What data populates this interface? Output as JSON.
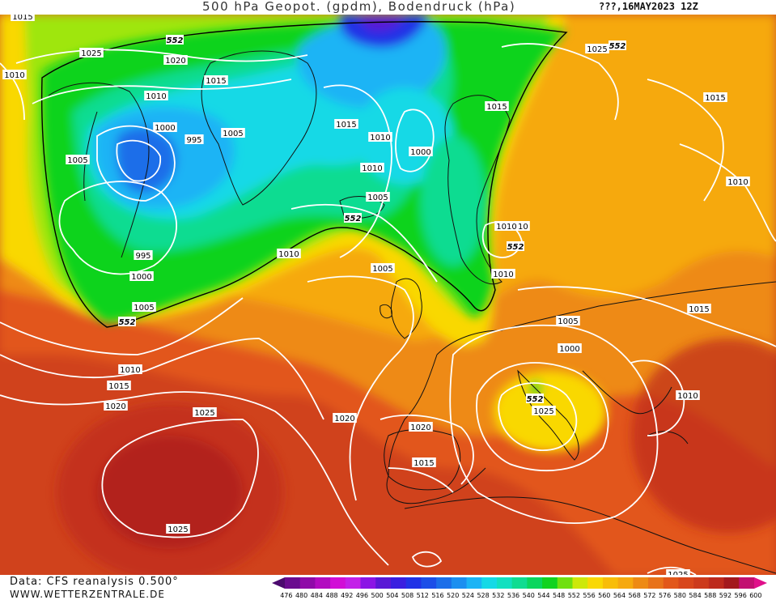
{
  "header": {
    "title": "500 hPa Geopot. (gpdm), Bodendruck (hPa)",
    "timestamp": "???,16MAY2023 12Z"
  },
  "footer": {
    "data_source": "Data: CFS reanalysis 0.500°",
    "website": "WWW.WETTERZENTRALE.DE"
  },
  "colors": {
    "sea_deep": "#a3191d",
    "red": "#cc3a1c",
    "orange_red": "#e2571a",
    "orange": "#ee8a14",
    "amber": "#f6a90f",
    "yellow": "#f9d804",
    "lime": "#cde80a",
    "green": "#11d31f",
    "teal": "#0fdc91",
    "cyan": "#15d9e6",
    "sky": "#1bb4f5",
    "blue": "#1b6ee9",
    "indigo": "#5a18d6",
    "purple": "#7f10c9",
    "isobar": "#ffffff",
    "coast": "#111111"
  },
  "geopotential_scale": {
    "labels": [
      "476",
      "480",
      "484",
      "488",
      "492",
      "496",
      "500",
      "504",
      "508",
      "512",
      "516",
      "520",
      "524",
      "528",
      "532",
      "536",
      "540",
      "544",
      "548",
      "552",
      "556",
      "560",
      "564",
      "568",
      "572",
      "576",
      "580",
      "584",
      "588",
      "592",
      "596",
      "600"
    ],
    "colors": [
      "#4b0a6e",
      "#6a0b8f",
      "#8f0aa8",
      "#b20bc0",
      "#d10ed6",
      "#c320e8",
      "#8b15e5",
      "#5a18d6",
      "#3a1ee0",
      "#2132e6",
      "#1b4ee8",
      "#1b6ee9",
      "#1b8ff0",
      "#1bb4f5",
      "#15d9e6",
      "#12e0c0",
      "#0fdc91",
      "#0ad65e",
      "#11d31f",
      "#70e010",
      "#cde80a",
      "#f9d804",
      "#f8bd08",
      "#f6a90f",
      "#ee8a14",
      "#e8721a",
      "#e2571a",
      "#d8461b",
      "#cc3a1c",
      "#bd2a1d",
      "#a3191d",
      "#c21070",
      "#e0108a"
    ]
  },
  "isobar_labels": [
    "1015",
    "1025",
    "1020",
    "1015",
    "1010",
    "1010",
    "1000",
    "995",
    "1005",
    "1005",
    "995",
    "1000",
    "1005",
    "1010",
    "1015",
    "1020",
    "1025",
    "1025",
    "1020",
    "1015",
    "1010",
    "1015",
    "1010",
    "1000",
    "1005",
    "1010",
    "1005",
    "1015",
    "1010",
    "1025",
    "1015",
    "1010",
    "1015",
    "1010",
    "1005",
    "1000",
    "1010",
    "1025",
    "1010",
    "1020",
    "1025"
  ],
  "geopotential_labels": [
    "552",
    "552",
    "552",
    "552",
    "552",
    "552"
  ]
}
